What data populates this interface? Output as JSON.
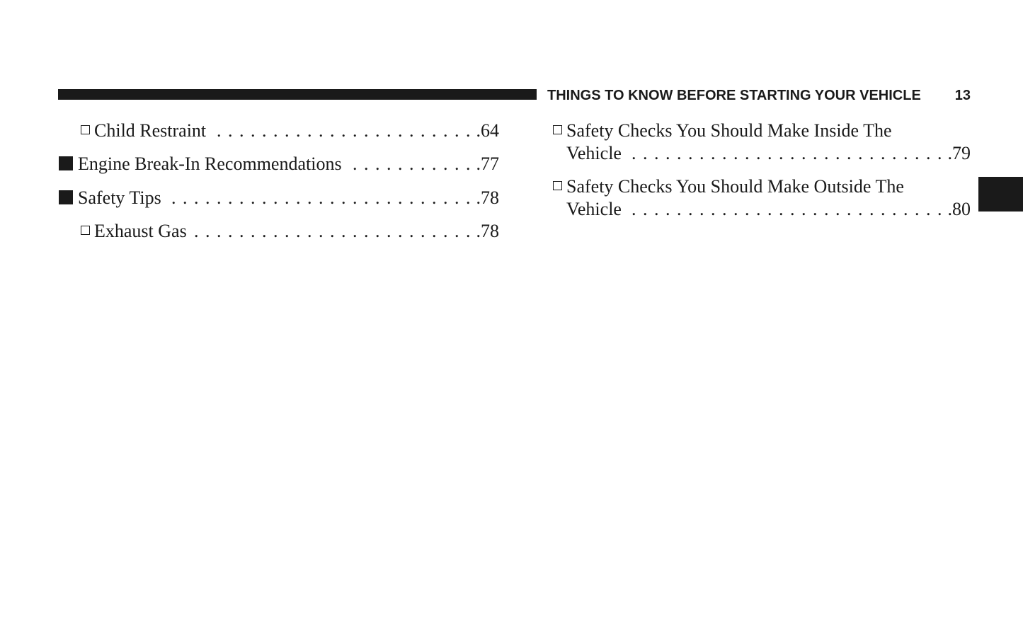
{
  "header": {
    "section_title": "THINGS TO KNOW BEFORE STARTING YOUR VEHICLE",
    "page_number": "13"
  },
  "left_entries": [
    {
      "level": "sub",
      "label": "Child Restraint",
      "page": ".64"
    },
    {
      "level": "main",
      "label": "Engine Break-In Recommendations",
      "page": ".77"
    },
    {
      "level": "main",
      "label": "Safety Tips",
      "page": ".78"
    },
    {
      "level": "sub",
      "label": "Exhaust Gas",
      "page": ".78"
    }
  ],
  "right_entries": [
    {
      "level": "sub",
      "line1": "Safety Checks You Should Make Inside The",
      "line2": "Vehicle",
      "page": ".79"
    },
    {
      "level": "sub",
      "line1": "Safety Checks You Should Make Outside The",
      "line2": "Vehicle",
      "page": ".80"
    }
  ]
}
